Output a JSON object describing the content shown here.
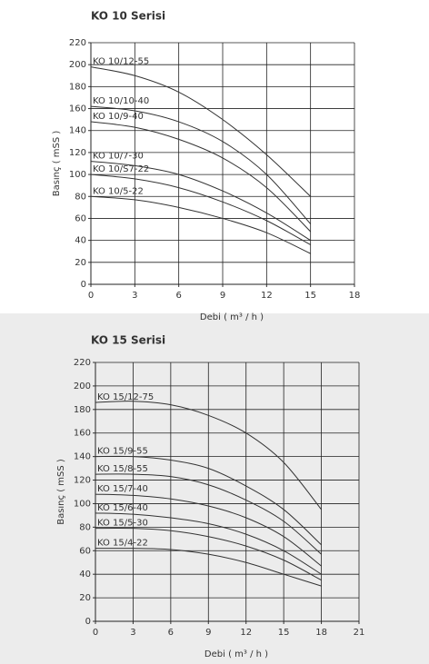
{
  "chart_data": [
    {
      "type": "line",
      "title": "KO 10 Serisi",
      "xlabel": "Debi ( m³ / h )",
      "ylabel": "Basınç ( mSS )",
      "x": [
        0,
        3,
        6,
        9,
        12,
        15
      ],
      "xlim": [
        0,
        18
      ],
      "xticks": [
        0,
        3,
        6,
        9,
        12,
        15,
        18
      ],
      "ylim": [
        0,
        220
      ],
      "yticks": [
        0,
        20,
        40,
        60,
        80,
        100,
        120,
        140,
        160,
        180,
        200,
        220
      ],
      "grid": true,
      "series": [
        {
          "name": "KO 10/12-55",
          "color": "#333333",
          "values": [
            198,
            190,
            175,
            150,
            118,
            80
          ]
        },
        {
          "name": "KO 10/10-40",
          "color": "#333333",
          "values": [
            162,
            158,
            148,
            130,
            100,
            55
          ]
        },
        {
          "name": "KO 10/9-40",
          "color": "#333333",
          "values": [
            148,
            143,
            132,
            115,
            88,
            48
          ]
        },
        {
          "name": "KO 10/7-30",
          "color": "#333333",
          "values": [
            112,
            108,
            100,
            85,
            65,
            40
          ]
        },
        {
          "name": "KO 10/S7-22",
          "color": "#333333",
          "values": [
            100,
            96,
            88,
            75,
            58,
            36
          ]
        },
        {
          "name": "KO 10/5-22",
          "color": "#333333",
          "values": [
            80,
            77,
            70,
            60,
            47,
            28
          ]
        }
      ]
    },
    {
      "type": "line",
      "title": "KO 15 Serisi",
      "xlabel": "Debi ( m³ / h )",
      "ylabel": "Basınç ( mSS )",
      "x": [
        0,
        3,
        6,
        9,
        12,
        15,
        18
      ],
      "xlim": [
        0,
        21
      ],
      "xticks": [
        0,
        3,
        6,
        9,
        12,
        15,
        18,
        21
      ],
      "ylim": [
        0,
        220
      ],
      "yticks": [
        0,
        20,
        40,
        60,
        80,
        100,
        120,
        140,
        160,
        180,
        200,
        220
      ],
      "grid": true,
      "series": [
        {
          "name": "KO 15/12-75",
          "color": "#333333",
          "values": [
            186,
            187,
            184,
            175,
            160,
            135,
            95
          ]
        },
        {
          "name": "KO 15/9-55",
          "color": "#333333",
          "values": [
            140,
            140,
            137,
            130,
            115,
            95,
            65
          ]
        },
        {
          "name": "KO 15/8-55",
          "color": "#333333",
          "values": [
            125,
            125,
            123,
            116,
            103,
            85,
            57
          ]
        },
        {
          "name": "KO 15/7-40",
          "color": "#333333",
          "values": [
            108,
            107,
            104,
            98,
            88,
            72,
            47
          ]
        },
        {
          "name": "KO 15/6-40",
          "color": "#333333",
          "values": [
            92,
            91,
            88,
            83,
            74,
            60,
            40
          ]
        },
        {
          "name": "KO 15/5-30",
          "color": "#333333",
          "values": [
            79,
            79,
            77,
            72,
            64,
            52,
            35
          ]
        },
        {
          "name": "KO 15/4-22",
          "color": "#333333",
          "values": [
            62,
            62,
            61,
            57,
            50,
            40,
            30
          ]
        }
      ]
    }
  ]
}
